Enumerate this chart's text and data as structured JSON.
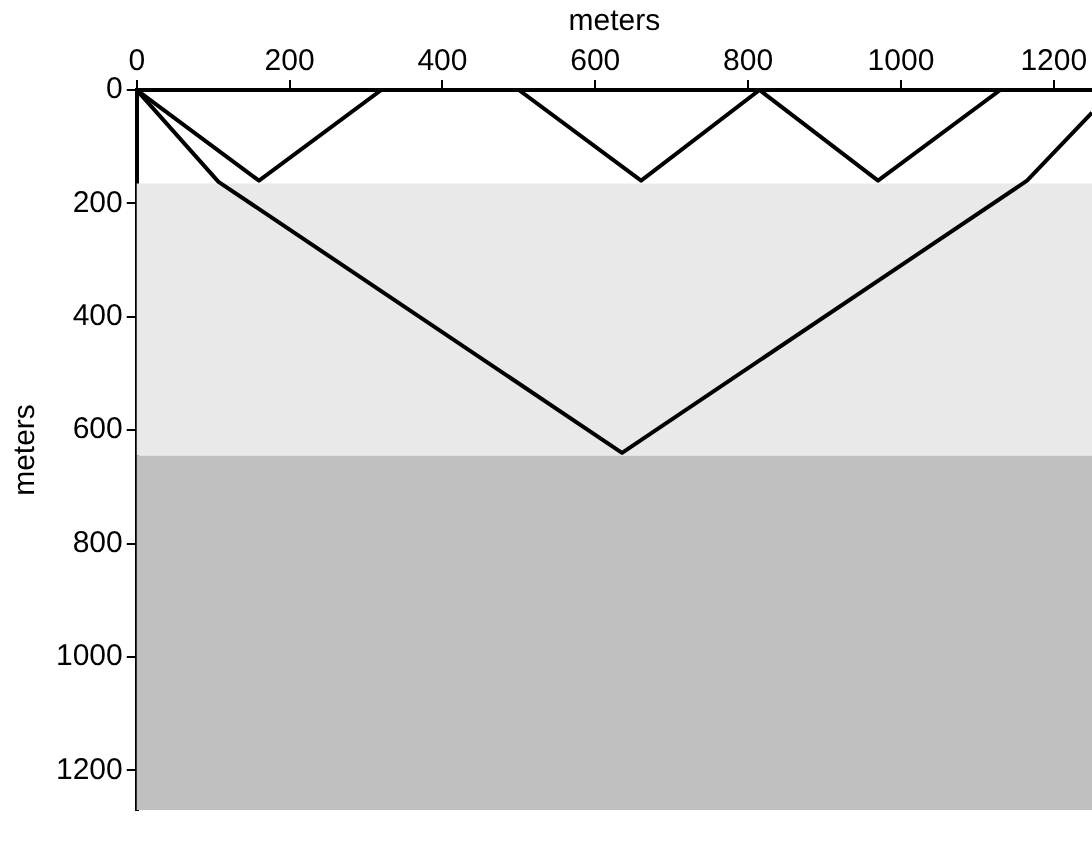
{
  "chart_data": {
    "type": "line",
    "xlabel": "meters",
    "ylabel": "meters",
    "series": [
      {
        "color": "#000000",
        "x": [
          0,
          160,
          320
        ],
        "values": [
          0,
          160,
          0
        ]
      },
      {
        "color": "#000000",
        "x": [
          500,
          660,
          815,
          970,
          1130
        ],
        "values": [
          0,
          160,
          0,
          160,
          0
        ]
      },
      {
        "color": "#000000",
        "x": [
          0,
          107,
          635,
          1165,
          1250
        ],
        "values": [
          0,
          162,
          640,
          160,
          40
        ]
      }
    ],
    "xlim": [
      0,
      1250
    ],
    "xticks": [
      0,
      200,
      400,
      600,
      800,
      1000,
      1200
    ],
    "ylim": [
      1270,
      0
    ],
    "yticks": [
      0,
      200,
      400,
      600,
      800,
      1000,
      1200
    ],
    "bands": [
      {
        "axis": "y",
        "from": 165,
        "to": 645,
        "color": "#e9e9e9"
      },
      {
        "axis": "y",
        "from": 645,
        "to": 1270,
        "color": "#c0c0c0"
      }
    ],
    "grid": false,
    "legend": false,
    "marker": "none",
    "line_style": "solid"
  }
}
